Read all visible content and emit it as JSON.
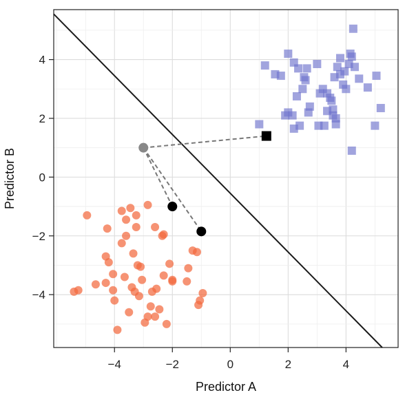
{
  "chart_data": {
    "type": "scatter",
    "title": "",
    "xlabel": "Predictor A",
    "ylabel": "Predictor B",
    "xlim": [
      -6.1,
      5.8
    ],
    "ylim": [
      -5.8,
      5.7
    ],
    "xticks": [
      -4,
      -2,
      0,
      2,
      4
    ],
    "yticks": [
      -4,
      -2,
      0,
      2,
      4
    ],
    "x_tick_labels": [
      "−4",
      "−2",
      "0",
      "2",
      "4"
    ],
    "y_tick_labels": [
      "−4",
      "−2",
      "0",
      "2",
      "4"
    ],
    "grid": true,
    "colors": {
      "class_a": "#f26a3f",
      "class_b": "#6f73cc",
      "boundary": "#1a1a1a",
      "query_point": "#888888",
      "neighbor": "#000000",
      "dashed": "#777777"
    },
    "series": [
      {
        "marker": "circle",
        "points": [
          [
            -5.4,
            -3.9
          ],
          [
            -5.25,
            -3.85
          ],
          [
            -4.95,
            -1.3
          ],
          [
            -4.65,
            -3.65
          ],
          [
            -4.3,
            -2.7
          ],
          [
            -4.3,
            -3.6
          ],
          [
            -4.25,
            -1.75
          ],
          [
            -4.2,
            -2.9
          ],
          [
            -4.05,
            -3.3
          ],
          [
            -4.05,
            -3.85
          ],
          [
            -4.0,
            -4.2
          ],
          [
            -3.9,
            -5.2
          ],
          [
            -3.75,
            -1.15
          ],
          [
            -3.75,
            -2.25
          ],
          [
            -3.65,
            -3.4
          ],
          [
            -3.6,
            -1.45
          ],
          [
            -3.6,
            -2.0
          ],
          [
            -3.5,
            -4.6
          ],
          [
            -3.45,
            -1.05
          ],
          [
            -3.4,
            -3.75
          ],
          [
            -3.35,
            -2.6
          ],
          [
            -3.3,
            -3.9
          ],
          [
            -3.25,
            -1.3
          ],
          [
            -3.25,
            -1.7
          ],
          [
            -3.2,
            -3.0
          ],
          [
            -3.15,
            -4.05
          ],
          [
            -3.1,
            -3.05
          ],
          [
            -3.05,
            -3.5
          ],
          [
            -2.95,
            -4.95
          ],
          [
            -2.85,
            -0.95
          ],
          [
            -2.85,
            -4.75
          ],
          [
            -2.75,
            -4.4
          ],
          [
            -2.7,
            -3.9
          ],
          [
            -2.6,
            -1.7
          ],
          [
            -2.6,
            -4.75
          ],
          [
            -2.55,
            -3.8
          ],
          [
            -2.45,
            -4.5
          ],
          [
            -2.35,
            -2.0
          ],
          [
            -2.3,
            -1.95
          ],
          [
            -2.3,
            -3.35
          ],
          [
            -2.2,
            -5.0
          ],
          [
            -2.1,
            -2.95
          ],
          [
            -2.0,
            -3.5
          ],
          [
            -2.0,
            -3.55
          ],
          [
            -1.5,
            -3.55
          ],
          [
            -1.45,
            -3.1
          ],
          [
            -1.3,
            -2.5
          ],
          [
            -1.15,
            -2.55
          ],
          [
            -1.1,
            -4.35
          ],
          [
            -1.05,
            -4.2
          ],
          [
            -0.95,
            -3.95
          ]
        ]
      },
      {
        "marker": "square",
        "points": [
          [
            1.0,
            1.8
          ],
          [
            1.2,
            3.8
          ],
          [
            1.55,
            3.5
          ],
          [
            1.75,
            3.45
          ],
          [
            1.9,
            2.1
          ],
          [
            2.0,
            2.2
          ],
          [
            2.0,
            4.2
          ],
          [
            2.15,
            2.1
          ],
          [
            2.2,
            1.65
          ],
          [
            2.2,
            3.9
          ],
          [
            2.3,
            2.75
          ],
          [
            2.35,
            3.7
          ],
          [
            2.4,
            1.75
          ],
          [
            2.5,
            3.0
          ],
          [
            2.55,
            3.4
          ],
          [
            2.6,
            3.3
          ],
          [
            2.65,
            3.7
          ],
          [
            2.7,
            2.2
          ],
          [
            2.75,
            2.4
          ],
          [
            3.0,
            3.85
          ],
          [
            3.05,
            1.75
          ],
          [
            3.1,
            2.85
          ],
          [
            3.2,
            3.0
          ],
          [
            3.25,
            1.75
          ],
          [
            3.35,
            2.85
          ],
          [
            3.35,
            2.25
          ],
          [
            3.45,
            2.7
          ],
          [
            3.5,
            2.6
          ],
          [
            3.55,
            2.1
          ],
          [
            3.55,
            2.3
          ],
          [
            3.6,
            3.4
          ],
          [
            3.65,
            1.8
          ],
          [
            3.65,
            2.0
          ],
          [
            3.7,
            3.75
          ],
          [
            3.8,
            3.5
          ],
          [
            3.8,
            4.05
          ],
          [
            3.9,
            3.15
          ],
          [
            3.95,
            3.6
          ],
          [
            4.0,
            3.0
          ],
          [
            4.1,
            3.85
          ],
          [
            4.15,
            4.2
          ],
          [
            4.2,
            0.9
          ],
          [
            4.2,
            4.1
          ],
          [
            4.25,
            5.05
          ],
          [
            4.3,
            3.75
          ],
          [
            4.45,
            3.35
          ],
          [
            4.75,
            3.05
          ],
          [
            5.0,
            1.75
          ],
          [
            5.05,
            3.45
          ],
          [
            5.2,
            2.35
          ]
        ]
      }
    ],
    "decision_boundary": {
      "intercept": -0.55,
      "slope": -1.0
    },
    "query_point": [
      -3.0,
      1.0
    ],
    "neighbors": [
      {
        "x": -2.0,
        "y": -1.0,
        "marker": "circle"
      },
      {
        "x": -1.0,
        "y": -1.85,
        "marker": "circle"
      },
      {
        "x": 1.25,
        "y": 1.4,
        "marker": "square"
      }
    ]
  }
}
